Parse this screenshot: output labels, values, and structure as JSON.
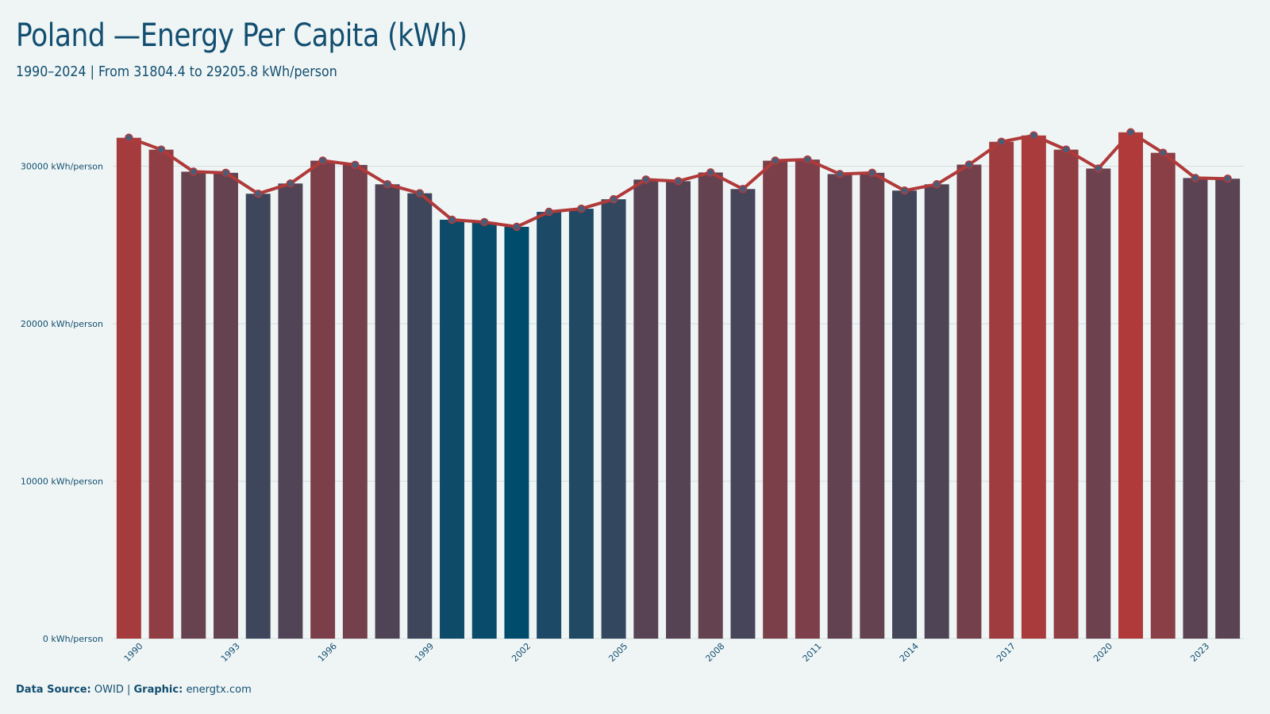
{
  "title": "Poland —Energy Per Capita (kWh)",
  "subtitle": "1990–2024 | From 31804.4 to 29205.8 kWh/person",
  "footer": {
    "source_label": "Data Source:",
    "source_value": "OWID",
    "separator": "|",
    "graphic_label": "Graphic:",
    "graphic_value": "energtx.com"
  },
  "colors": {
    "background": "#eff5f5",
    "high": "#b03a3a",
    "low": "#004c6d",
    "line": "#b03a3a",
    "marker_fill": "#4a5d78",
    "text": "#124e70"
  },
  "chart_data": {
    "type": "bar",
    "overlay": "line",
    "x": [
      1990,
      1991,
      1992,
      1993,
      1994,
      1995,
      1996,
      1997,
      1998,
      1999,
      2000,
      2001,
      2002,
      2003,
      2004,
      2005,
      2006,
      2007,
      2008,
      2009,
      2010,
      2011,
      2012,
      2013,
      2014,
      2015,
      2016,
      2017,
      2018,
      2019,
      2020,
      2021,
      2022,
      2023,
      2024
    ],
    "values": [
      31804.4,
      31050,
      29650,
      29580,
      28250,
      28900,
      30350,
      30080,
      28850,
      28280,
      26600,
      26450,
      26150,
      27100,
      27300,
      27900,
      29150,
      29050,
      29600,
      28550,
      30350,
      30420,
      29500,
      29580,
      28450,
      28850,
      30100,
      31550,
      31950,
      31050,
      29850,
      32150,
      30850,
      29250,
      29205.8
    ],
    "x_tick_labels": [
      "1990",
      "1993",
      "1996",
      "1999",
      "2002",
      "2005",
      "2008",
      "2011",
      "2014",
      "2017",
      "2020",
      "2023"
    ],
    "y_ticks": [
      0,
      10000,
      20000,
      30000
    ],
    "y_tick_labels": [
      "0 kWh/person",
      "10000 kWh/person",
      "20000 kWh/person",
      "30000 kWh/person"
    ],
    "ylim": [
      0,
      33500
    ],
    "xlabel": "",
    "ylabel": "",
    "grid": true,
    "color_encoding": "bars colored by value: lowest dark blue, highest red"
  }
}
